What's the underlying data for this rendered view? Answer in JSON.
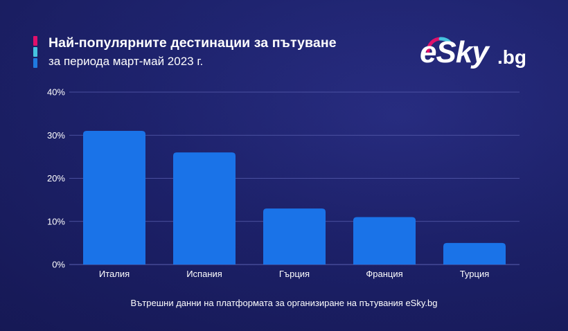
{
  "header": {
    "title": "Най-популярните дестинации за пътуване",
    "subtitle": "за периода март-май 2023 г."
  },
  "logo": {
    "text": "eSky",
    "tld": ".bg"
  },
  "source_note": "Вътрешни данни на платформата за организиране на пътувания eSky.bg",
  "colors": {
    "bar": "#1a73e8",
    "accent_top": "#e0106a",
    "accent_mid": "#45c3df",
    "accent_bottom": "#1f7ae0",
    "gridline": "#5a5fb0"
  },
  "chart_data": {
    "type": "bar",
    "categories": [
      "Италия",
      "Испания",
      "Гърция",
      "Франция",
      "Турция"
    ],
    "values": [
      31,
      26,
      13,
      11,
      5
    ],
    "ylim": [
      0,
      40
    ],
    "yticks": [
      "0%",
      "10%",
      "20%",
      "30%",
      "40%"
    ],
    "grid": true,
    "unit": "%"
  }
}
